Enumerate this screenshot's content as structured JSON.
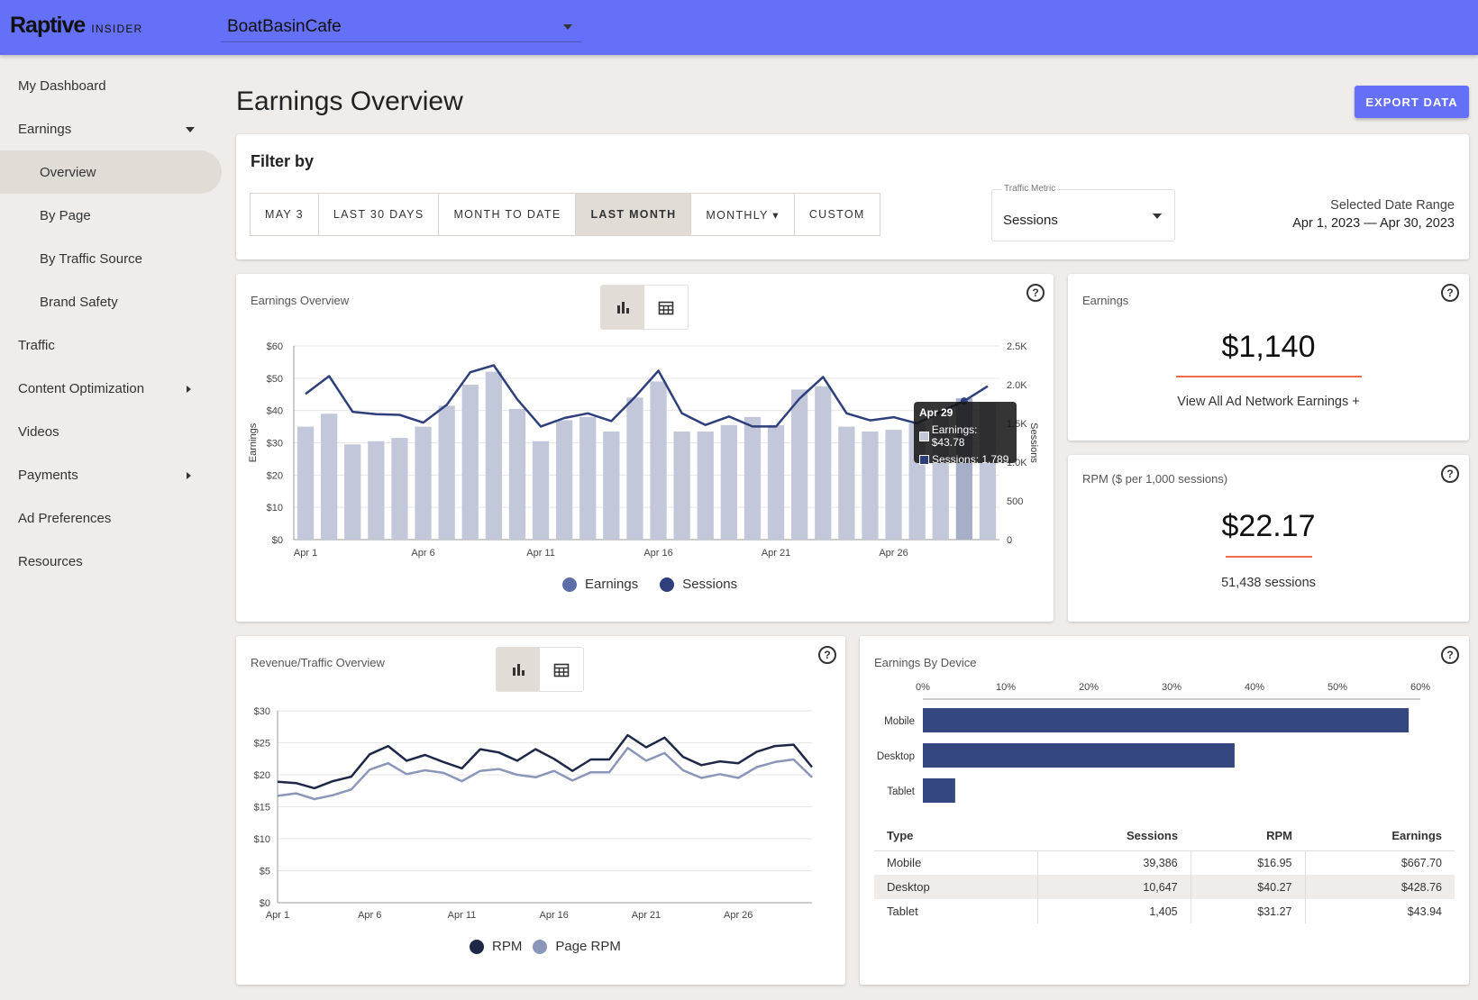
{
  "app": {
    "logo_main": "Raptive",
    "logo_sub": "INSIDER",
    "site": "BoatBasinCafe"
  },
  "sidebar": {
    "items": [
      {
        "label": "My Dashboard"
      },
      {
        "label": "Earnings"
      },
      {
        "label": "Overview"
      },
      {
        "label": "By Page"
      },
      {
        "label": "By Traffic Source"
      },
      {
        "label": "Brand Safety"
      },
      {
        "label": "Traffic"
      },
      {
        "label": "Content Optimization"
      },
      {
        "label": "Videos"
      },
      {
        "label": "Payments"
      },
      {
        "label": "Ad Preferences"
      },
      {
        "label": "Resources"
      }
    ]
  },
  "header": {
    "title": "Earnings Overview",
    "export_label": "EXPORT DATA"
  },
  "filter": {
    "title": "Filter by",
    "buttons": [
      "MAY 3",
      "LAST 30 DAYS",
      "MONTH TO DATE",
      "LAST MONTH",
      "MONTHLY ▾",
      "CUSTOM"
    ],
    "active": "LAST MONTH",
    "metric_label": "Traffic Metric",
    "metric_value": "Sessions",
    "range_label": "Selected Date Range",
    "range_value": "Apr 1, 2023 — Apr 30, 2023"
  },
  "earnings_chart": {
    "title": "Earnings Overview",
    "legend": [
      "Earnings",
      "Sessions"
    ],
    "tooltip": {
      "date": "Apr 29",
      "earnings": "Earnings: $43.78",
      "sessions": "Sessions: 1,789"
    }
  },
  "earnings_card": {
    "title": "Earnings",
    "value": "$1,140",
    "link": "View All Ad Network Earnings +"
  },
  "rpm_card": {
    "title": "RPM ($ per 1,000 sessions)",
    "value": "$22.17",
    "sub": "51,438 sessions"
  },
  "revenue_chart": {
    "title": "Revenue/Traffic Overview",
    "legend": [
      "RPM",
      "Page RPM"
    ]
  },
  "device_card": {
    "title": "Earnings By Device",
    "table_headers": [
      "Type",
      "Sessions",
      "RPM",
      "Earnings"
    ],
    "rows": [
      [
        "Mobile",
        "39,386",
        "$16.95",
        "$667.70"
      ],
      [
        "Desktop",
        "10,647",
        "$40.27",
        "$428.76"
      ],
      [
        "Tablet",
        "1,405",
        "$31.27",
        "$43.94"
      ]
    ]
  },
  "colors": {
    "brand": "#6470f7",
    "bar": "#c2c8d9",
    "line": "#2f3f7c",
    "rpm": "#1f2747",
    "page_rpm": "#8b96b8",
    "device_bar": "#34477f",
    "accent_underline": "#f26b4b"
  },
  "chart_data": [
    {
      "type": "bar",
      "title": "Earnings Overview",
      "xlabel": "",
      "ylabel": "Earnings",
      "y2label": "Sessions",
      "x": [
        "Apr 1",
        "Apr 2",
        "Apr 3",
        "Apr 4",
        "Apr 5",
        "Apr 6",
        "Apr 7",
        "Apr 8",
        "Apr 9",
        "Apr 10",
        "Apr 11",
        "Apr 12",
        "Apr 13",
        "Apr 14",
        "Apr 15",
        "Apr 16",
        "Apr 17",
        "Apr 18",
        "Apr 19",
        "Apr 20",
        "Apr 21",
        "Apr 22",
        "Apr 23",
        "Apr 24",
        "Apr 25",
        "Apr 26",
        "Apr 27",
        "Apr 28",
        "Apr 29",
        "Apr 30"
      ],
      "xticks": [
        "Apr 1",
        "Apr 6",
        "Apr 11",
        "Apr 16",
        "Apr 21",
        "Apr 26"
      ],
      "ylim": [
        0,
        60
      ],
      "yticks": [
        "$0",
        "$10",
        "$20",
        "$30",
        "$40",
        "$50",
        "$60"
      ],
      "y2lim": [
        0,
        2500
      ],
      "y2ticks": [
        "0",
        "500",
        "1.0K",
        "1.5K",
        "2.0K",
        "2.5K"
      ],
      "series": [
        {
          "name": "Earnings",
          "kind": "bar",
          "values": [
            35,
            39,
            29.5,
            30.5,
            31.5,
            35,
            41.5,
            48,
            52,
            40.5,
            30.5,
            37,
            38,
            33.5,
            44,
            49,
            33.5,
            33.5,
            35.5,
            38,
            35.5,
            46.5,
            47.5,
            35,
            33.5,
            34,
            36,
            40,
            43.78,
            42.5
          ]
        },
        {
          "name": "Sessions",
          "kind": "line",
          "values": [
            1880,
            2110,
            1650,
            1620,
            1610,
            1510,
            1740,
            2160,
            2250,
            1810,
            1460,
            1570,
            1630,
            1530,
            1840,
            2180,
            1630,
            1480,
            1590,
            1460,
            1460,
            1820,
            2100,
            1630,
            1540,
            1580,
            1500,
            1650,
            1789,
            1980
          ]
        }
      ]
    },
    {
      "type": "line",
      "title": "Revenue/Traffic Overview",
      "xlabel": "",
      "ylabel": "",
      "x": [
        "Apr 1",
        "Apr 2",
        "Apr 3",
        "Apr 4",
        "Apr 5",
        "Apr 6",
        "Apr 7",
        "Apr 8",
        "Apr 9",
        "Apr 10",
        "Apr 11",
        "Apr 12",
        "Apr 13",
        "Apr 14",
        "Apr 15",
        "Apr 16",
        "Apr 17",
        "Apr 18",
        "Apr 19",
        "Apr 20",
        "Apr 21",
        "Apr 22",
        "Apr 23",
        "Apr 24",
        "Apr 25",
        "Apr 26",
        "Apr 27",
        "Apr 28",
        "Apr 29",
        "Apr 30"
      ],
      "xticks": [
        "Apr 1",
        "Apr 6",
        "Apr 11",
        "Apr 16",
        "Apr 21",
        "Apr 26"
      ],
      "ylim": [
        0,
        30
      ],
      "yticks": [
        "$0",
        "$5",
        "$10",
        "$15",
        "$20",
        "$25",
        "$30"
      ],
      "series": [
        {
          "name": "RPM",
          "values": [
            18.9,
            18.7,
            17.9,
            19.0,
            19.7,
            23.2,
            24.5,
            22.2,
            23.1,
            22.0,
            21.0,
            24.0,
            23.5,
            22.2,
            24.0,
            22.5,
            20.6,
            22.4,
            22.4,
            26.2,
            24.3,
            25.8,
            22.8,
            21.5,
            22.1,
            21.8,
            23.6,
            24.5,
            24.7,
            21.2
          ]
        },
        {
          "name": "Page RPM",
          "values": [
            16.7,
            17.1,
            16.2,
            16.8,
            17.7,
            20.8,
            21.8,
            20.1,
            20.7,
            20.3,
            19.0,
            20.6,
            20.9,
            20.0,
            19.6,
            20.6,
            19.1,
            20.4,
            20.4,
            24.2,
            22.2,
            23.4,
            20.7,
            19.5,
            20.1,
            19.5,
            21.2,
            22.0,
            22.4,
            19.6
          ]
        }
      ]
    },
    {
      "type": "bar",
      "orientation": "horizontal",
      "title": "Earnings By Device",
      "xlabel": "",
      "ylabel": "",
      "categories": [
        "Mobile",
        "Desktop",
        "Tablet"
      ],
      "values": [
        58.6,
        37.6,
        3.9
      ],
      "xlim": [
        0,
        60
      ],
      "xticks": [
        "0%",
        "10%",
        "20%",
        "30%",
        "40%",
        "50%",
        "60%"
      ]
    }
  ]
}
